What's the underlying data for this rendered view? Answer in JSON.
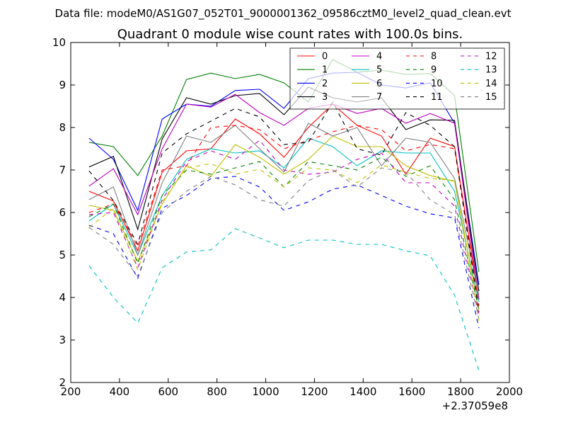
{
  "chart_data": {
    "type": "line",
    "suptitle": "Data file: modeM0/AS1G07_052T01_9000001362_09586cztM0_level2_quad_clean.evt",
    "title": "Quadrant 0 module wise count rates with 100.0s bins.",
    "xlabel": "",
    "ylabel": "",
    "offset_text": "+2.37059e8",
    "xlim": [
      200,
      2000
    ],
    "ylim": [
      2,
      10
    ],
    "xticks": [
      200,
      400,
      600,
      800,
      1000,
      1200,
      1400,
      1600,
      1800,
      2000
    ],
    "yticks": [
      2,
      3,
      4,
      5,
      6,
      7,
      8,
      9,
      10
    ],
    "legend_position": "top-right",
    "legend_columns": 4,
    "x": [
      275,
      375,
      475,
      575,
      675,
      775,
      875,
      975,
      1075,
      1175,
      1275,
      1375,
      1475,
      1575,
      1675,
      1775,
      1875
    ],
    "series": [
      {
        "name": "0",
        "color": "#ff0000",
        "dash": "solid",
        "values": [
          6.5,
          6.27,
          5.1,
          6.95,
          7.45,
          7.5,
          8.2,
          7.85,
          7.3,
          8.0,
          8.55,
          8.05,
          7.8,
          6.9,
          7.75,
          7.55,
          3.95
        ]
      },
      {
        "name": "1",
        "color": "#008000",
        "dash": "solid",
        "values": [
          7.65,
          7.55,
          6.87,
          7.8,
          9.13,
          9.28,
          9.15,
          9.25,
          9.05,
          8.6,
          9.6,
          9.3,
          9.35,
          9.25,
          9.27,
          8.75,
          4.6
        ]
      },
      {
        "name": "2",
        "color": "#0000ff",
        "dash": "solid",
        "values": [
          7.75,
          7.25,
          6.05,
          8.2,
          8.55,
          8.5,
          8.87,
          8.9,
          8.45,
          9.15,
          9.28,
          9.3,
          9.0,
          8.93,
          9.05,
          8.1,
          4.3
        ]
      },
      {
        "name": "3",
        "color": "#000000",
        "dash": "solid",
        "values": [
          7.07,
          7.32,
          5.6,
          7.73,
          8.7,
          8.55,
          8.75,
          8.8,
          8.3,
          8.95,
          8.7,
          8.6,
          8.7,
          7.95,
          8.18,
          8.17,
          4.15
        ]
      },
      {
        "name": "4",
        "color": "#bf00bf",
        "dash": "solid",
        "values": [
          6.62,
          7.03,
          5.95,
          7.5,
          8.55,
          8.48,
          8.78,
          8.35,
          8.05,
          8.45,
          8.55,
          8.33,
          8.45,
          8.1,
          8.33,
          8.1,
          3.95
        ]
      },
      {
        "name": "5",
        "color": "#00bfbf",
        "dash": "solid",
        "values": [
          5.8,
          6.2,
          5.0,
          6.4,
          7.25,
          7.5,
          7.4,
          7.45,
          7.05,
          7.75,
          7.55,
          7.1,
          7.45,
          7.4,
          7.4,
          6.5,
          3.9
        ]
      },
      {
        "name": "6",
        "color": "#bfbf00",
        "dash": "solid",
        "values": [
          6.17,
          6.05,
          4.85,
          6.2,
          7.1,
          6.85,
          7.6,
          7.3,
          6.9,
          7.25,
          7.8,
          7.55,
          7.55,
          7.1,
          6.87,
          6.73,
          3.7
        ]
      },
      {
        "name": "7",
        "color": "#808080",
        "dash": "solid",
        "values": [
          6.3,
          6.6,
          5.0,
          6.7,
          7.8,
          7.65,
          8.05,
          7.5,
          6.95,
          8.1,
          7.8,
          8.0,
          7.1,
          7.75,
          7.65,
          6.8,
          4.05
        ]
      },
      {
        "name": "8",
        "color": "#ff0000",
        "dash": "dashed",
        "values": [
          6.0,
          6.2,
          5.2,
          7.0,
          7.1,
          8.0,
          8.05,
          7.95,
          7.5,
          7.7,
          7.9,
          8.05,
          7.95,
          7.45,
          7.6,
          7.5,
          3.8
        ]
      },
      {
        "name": "9",
        "color": "#008000",
        "dash": "dashed",
        "values": [
          5.9,
          6.2,
          4.8,
          6.4,
          7.0,
          6.9,
          7.05,
          7.2,
          6.6,
          7.2,
          7.1,
          7.0,
          7.3,
          6.85,
          7.1,
          6.3,
          3.7
        ]
      },
      {
        "name": "10",
        "color": "#0000ff",
        "dash": "dashed",
        "values": [
          5.7,
          5.5,
          4.45,
          6.1,
          6.4,
          6.8,
          6.85,
          6.6,
          6.05,
          6.25,
          6.55,
          6.65,
          6.4,
          6.15,
          5.97,
          5.87,
          3.28
        ]
      },
      {
        "name": "11",
        "color": "#000000",
        "dash": "dashed",
        "values": [
          6.98,
          6.28,
          5.25,
          7.4,
          7.85,
          8.15,
          8.45,
          8.25,
          7.6,
          7.65,
          8.6,
          7.5,
          7.35,
          8.35,
          8.05,
          7.55,
          3.65
        ]
      },
      {
        "name": "12",
        "color": "#bf00bf",
        "dash": "dashed",
        "values": [
          5.95,
          6.0,
          4.7,
          6.3,
          7.2,
          7.45,
          7.25,
          7.7,
          7.0,
          6.9,
          6.95,
          7.25,
          7.4,
          6.7,
          6.7,
          6.15,
          3.6
        ]
      },
      {
        "name": "13",
        "color": "#00bfbf",
        "dash": "dashed",
        "values": [
          4.75,
          4.0,
          3.4,
          4.7,
          5.07,
          5.12,
          5.62,
          5.4,
          5.17,
          5.35,
          5.35,
          5.25,
          5.25,
          5.1,
          4.98,
          4.05,
          2.28
        ]
      },
      {
        "name": "14",
        "color": "#bfbf00",
        "dash": "dashed",
        "values": [
          5.65,
          6.1,
          4.65,
          6.25,
          7.05,
          7.15,
          6.9,
          7.02,
          6.6,
          7.05,
          7.0,
          6.7,
          7.12,
          6.95,
          6.8,
          6.75,
          3.45
        ]
      },
      {
        "name": "15",
        "color": "#808080",
        "dash": "dashed",
        "values": [
          5.65,
          5.25,
          4.5,
          6.0,
          6.5,
          6.85,
          6.65,
          6.3,
          6.15,
          6.75,
          7.0,
          6.6,
          7.05,
          6.95,
          6.3,
          5.95,
          3.5
        ]
      }
    ]
  }
}
